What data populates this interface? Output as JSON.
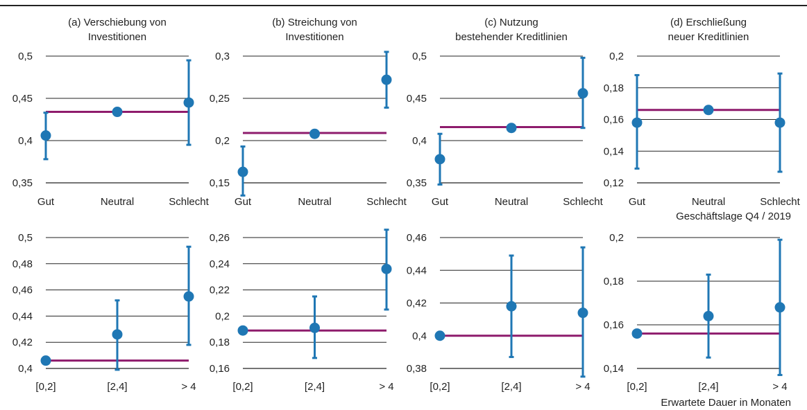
{
  "colors": {
    "point": "#1f77b4",
    "error": "#1f77b4",
    "baseline": "#8e1b6c",
    "grid": "#222222",
    "topRule": "#222222"
  },
  "notes": {
    "top_row_xlabel": "Geschäftslage Q4 / 2019",
    "bottom_row_xlabel": "Erwartete Dauer in Monaten"
  },
  "chart_data": [
    {
      "type": "scatter",
      "title_lines": [
        "(a) Verschiebung von",
        "Investitionen"
      ],
      "categories": [
        "Gut",
        "Neutral",
        "Schlecht"
      ],
      "values": [
        0.406,
        0.434,
        0.445
      ],
      "err_low": [
        0.378,
        0.434,
        0.395
      ],
      "err_high": [
        0.433,
        0.434,
        0.495
      ],
      "baseline": 0.434,
      "ylim": [
        0.35,
        0.5
      ],
      "yticks": [
        "0,35",
        "0,4",
        "0,45",
        "0,5"
      ],
      "ytick_values": [
        0.35,
        0.4,
        0.45,
        0.5
      ]
    },
    {
      "type": "scatter",
      "title_lines": [
        "(b) Streichung von",
        "Investitionen"
      ],
      "categories": [
        "Gut",
        "Neutral",
        "Schlecht"
      ],
      "values": [
        0.163,
        0.208,
        0.272
      ],
      "err_low": [
        0.135,
        0.208,
        0.239
      ],
      "err_high": [
        0.193,
        0.208,
        0.305
      ],
      "baseline": 0.209,
      "ylim": [
        0.15,
        0.3
      ],
      "yticks": [
        "0,15",
        "0,2",
        "0,25",
        "0,3"
      ],
      "ytick_values": [
        0.15,
        0.2,
        0.25,
        0.3
      ]
    },
    {
      "type": "scatter",
      "title_lines": [
        "(c) Nutzung",
        "bestehender Kreditlinien"
      ],
      "categories": [
        "Gut",
        "Neutral",
        "Schlecht"
      ],
      "values": [
        0.378,
        0.415,
        0.456
      ],
      "err_low": [
        0.348,
        0.415,
        0.415
      ],
      "err_high": [
        0.408,
        0.415,
        0.498
      ],
      "baseline": 0.416,
      "ylim": [
        0.35,
        0.5
      ],
      "yticks": [
        "0,35",
        "0,4",
        "0,45",
        "0,5"
      ],
      "ytick_values": [
        0.35,
        0.4,
        0.45,
        0.5
      ]
    },
    {
      "type": "scatter",
      "title_lines": [
        "(d) Erschließung",
        "neuer Kreditlinien"
      ],
      "categories": [
        "Gut",
        "Neutral",
        "Schlecht"
      ],
      "values": [
        0.158,
        0.166,
        0.158
      ],
      "err_low": [
        0.129,
        0.166,
        0.127
      ],
      "err_high": [
        0.188,
        0.166,
        0.189
      ],
      "baseline": 0.166,
      "ylim": [
        0.12,
        0.2
      ],
      "yticks": [
        "0,12",
        "0,14",
        "0,16",
        "0,18",
        "0,2"
      ],
      "ytick_values": [
        0.12,
        0.14,
        0.16,
        0.18,
        0.2
      ]
    },
    {
      "type": "scatter",
      "title_lines": [],
      "categories": [
        "[0,2]",
        "[2,4]",
        "> 4"
      ],
      "values": [
        0.406,
        0.426,
        0.455
      ],
      "err_low": [
        0.406,
        0.399,
        0.418
      ],
      "err_high": [
        0.406,
        0.452,
        0.493
      ],
      "baseline": 0.406,
      "ylim": [
        0.4,
        0.5
      ],
      "yticks": [
        "0,4",
        "0,42",
        "0,44",
        "0,46",
        "0,48",
        "0,5"
      ],
      "ytick_values": [
        0.4,
        0.42,
        0.44,
        0.46,
        0.48,
        0.5
      ]
    },
    {
      "type": "scatter",
      "title_lines": [],
      "categories": [
        "[0,2]",
        "[2,4]",
        "> 4"
      ],
      "values": [
        0.189,
        0.191,
        0.236
      ],
      "err_low": [
        0.189,
        0.168,
        0.205
      ],
      "err_high": [
        0.189,
        0.215,
        0.266
      ],
      "baseline": 0.189,
      "ylim": [
        0.16,
        0.26
      ],
      "yticks": [
        "0,16",
        "0,18",
        "0,2",
        "0,22",
        "0,24",
        "0,26"
      ],
      "ytick_values": [
        0.16,
        0.18,
        0.2,
        0.22,
        0.24,
        0.26
      ]
    },
    {
      "type": "scatter",
      "title_lines": [],
      "categories": [
        "[0,2]",
        "[2,4]",
        "> 4"
      ],
      "values": [
        0.4,
        0.418,
        0.414
      ],
      "err_low": [
        0.4,
        0.387,
        0.375
      ],
      "err_high": [
        0.4,
        0.449,
        0.454
      ],
      "baseline": 0.4,
      "ylim": [
        0.38,
        0.46
      ],
      "yticks": [
        "0,38",
        "0,4",
        "0,42",
        "0,44",
        "0,46"
      ],
      "ytick_values": [
        0.38,
        0.4,
        0.42,
        0.44,
        0.46
      ]
    },
    {
      "type": "scatter",
      "title_lines": [],
      "categories": [
        "[0,2]",
        "[2,4]",
        "> 4"
      ],
      "values": [
        0.156,
        0.164,
        0.168
      ],
      "err_low": [
        0.156,
        0.145,
        0.137
      ],
      "err_high": [
        0.156,
        0.183,
        0.199
      ],
      "baseline": 0.156,
      "ylim": [
        0.14,
        0.2
      ],
      "yticks": [
        "0,14",
        "0,16",
        "0,18",
        "0,2"
      ],
      "ytick_values": [
        0.14,
        0.16,
        0.18,
        0.2
      ]
    }
  ]
}
